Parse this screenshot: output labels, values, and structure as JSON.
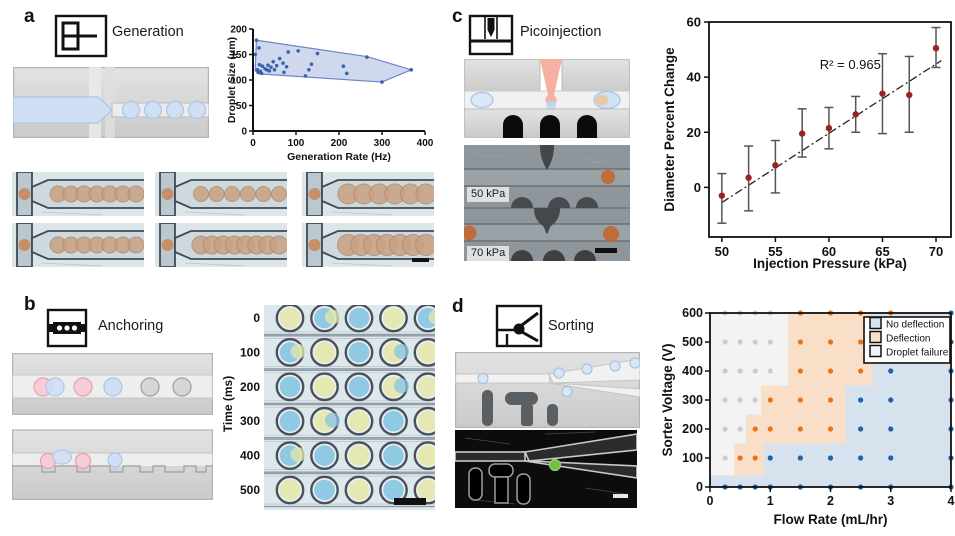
{
  "panels": {
    "a": {
      "letter": "a",
      "title": "Generation",
      "micro_images": [
        {
          "n": 7,
          "r": 8
        },
        {
          "n": 6,
          "r": 7.5
        },
        {
          "n": 6,
          "r": 10
        },
        {
          "n": 7,
          "r": 8
        },
        {
          "n": 8,
          "r": 9
        },
        {
          "n": 7,
          "r": 10.5
        }
      ]
    },
    "b": {
      "letter": "b",
      "title": "Anchoring",
      "time_axis_label": "Time (ms)",
      "time_ticks": [
        "0",
        "100",
        "200",
        "300",
        "400",
        "500"
      ],
      "anchor_rows": [
        [
          "Y",
          "BY",
          "B",
          "Y",
          "BY"
        ],
        [
          "BY",
          "Y",
          "B",
          "YB",
          "Y"
        ],
        [
          "B",
          "Y",
          "B",
          "YB",
          "Y"
        ],
        [
          "B",
          "YB",
          "Y",
          "B",
          "Y"
        ],
        [
          "BY",
          "B",
          "Y",
          "B",
          "Y"
        ],
        [
          "Y",
          "B",
          "Y",
          "B",
          "Y"
        ]
      ],
      "droplet_colors": {
        "Y": "#e4e7ab",
        "B": "#85c4e2"
      }
    },
    "c": {
      "letter": "c",
      "title": "Picoinjection",
      "image_labels": [
        "50 kPa",
        "70 kPa"
      ]
    },
    "d": {
      "letter": "d",
      "title": "Sorting"
    }
  },
  "chart_data": [
    {
      "id": "generation-operating-space",
      "type": "scatter",
      "title": "",
      "xlabel": "Generation Rate (Hz)",
      "ylabel": "Droplet Size (μm)",
      "xlim": [
        0,
        400
      ],
      "ylim": [
        0,
        200
      ],
      "xticks": [
        0,
        100,
        200,
        300,
        400
      ],
      "yticks": [
        0,
        50,
        100,
        150,
        200
      ],
      "point_color": "#3a63ad",
      "hull_fill": "#c9d3eb",
      "hull_stroke": "#5b74c4",
      "hull": [
        [
          5,
          118
        ],
        [
          8,
          178
        ],
        [
          265,
          146
        ],
        [
          368,
          120
        ],
        [
          300,
          96
        ],
        [
          14,
          112
        ]
      ],
      "points": [
        [
          5,
          150
        ],
        [
          8,
          178
        ],
        [
          10,
          120
        ],
        [
          12,
          115
        ],
        [
          14,
          163
        ],
        [
          15,
          130
        ],
        [
          17,
          117
        ],
        [
          20,
          113
        ],
        [
          22,
          127
        ],
        [
          28,
          122
        ],
        [
          32,
          120
        ],
        [
          35,
          129
        ],
        [
          38,
          118
        ],
        [
          42,
          125
        ],
        [
          47,
          136
        ],
        [
          50,
          120
        ],
        [
          55,
          128
        ],
        [
          62,
          142
        ],
        [
          70,
          133
        ],
        [
          72,
          115
        ],
        [
          78,
          126
        ],
        [
          82,
          155
        ],
        [
          105,
          157
        ],
        [
          122,
          108
        ],
        [
          130,
          120
        ],
        [
          136,
          131
        ],
        [
          150,
          152
        ],
        [
          210,
          127
        ],
        [
          218,
          113
        ],
        [
          265,
          145
        ],
        [
          300,
          96
        ],
        [
          368,
          120
        ]
      ]
    },
    {
      "id": "picoinjection-calibration",
      "type": "scatter",
      "title": "",
      "xlabel": "Injection Pressure (kPa)",
      "ylabel": "Diameter Percent Change",
      "xlim": [
        48.8,
        71.4
      ],
      "ylim": [
        -18,
        60
      ],
      "xticks": [
        50,
        55,
        60,
        65,
        70
      ],
      "yticks": [
        0,
        20,
        40,
        60
      ],
      "annotation": {
        "text": "R² = 0.965",
        "x": 62,
        "y": 43
      },
      "point_color": "#9c2222",
      "errorbar_color": "#555555",
      "points": [
        {
          "x": 50,
          "y": -3,
          "lo": -13,
          "hi": 5
        },
        {
          "x": 52.5,
          "y": 3.5,
          "lo": -8.5,
          "hi": 15
        },
        {
          "x": 55,
          "y": 8,
          "lo": -2,
          "hi": 17
        },
        {
          "x": 57.5,
          "y": 19.5,
          "lo": 11,
          "hi": 28.5
        },
        {
          "x": 60,
          "y": 21.5,
          "lo": 14,
          "hi": 29
        },
        {
          "x": 62.5,
          "y": 26.5,
          "lo": 20,
          "hi": 33
        },
        {
          "x": 65,
          "y": 34,
          "lo": 19.5,
          "hi": 48.5
        },
        {
          "x": 67.5,
          "y": 33.5,
          "lo": 20,
          "hi": 47.5
        },
        {
          "x": 70,
          "y": 50.5,
          "lo": 43.5,
          "hi": 58
        }
      ],
      "trendline": {
        "x1": 50,
        "y1": -5.5,
        "x2": 70.5,
        "y2": 46,
        "style": "dashdot"
      }
    },
    {
      "id": "sorting-phase-diagram",
      "type": "scatter",
      "title": "",
      "xlabel": "Flow Rate (mL/hr)",
      "ylabel": "Sorter Voltage (V)",
      "xlim": [
        0,
        4
      ],
      "ylim": [
        0,
        600
      ],
      "xticks": [
        0,
        1,
        2,
        3,
        4
      ],
      "yticks": [
        0,
        100,
        200,
        300,
        400,
        500,
        600
      ],
      "legend": [
        {
          "label": "No deflection",
          "key": "B",
          "color": "#d6e3ef"
        },
        {
          "label": "Deflection",
          "key": "O",
          "color": "#fadfc8"
        },
        {
          "label": "Droplet failure",
          "key": "G",
          "color": "#f3f3f3"
        }
      ],
      "point_colors": {
        "B": "#1f63a8",
        "O": "#e8731a",
        "G": "#cccccc"
      },
      "region_colors": {
        "B": "#d6e3ef",
        "O": "#fadfc8",
        "G": "#f3f3f3"
      },
      "blue_base_voltage": 40,
      "gray_steps": [
        [
          0.4,
          40,
          150
        ],
        [
          0.6,
          150,
          250
        ],
        [
          0.85,
          250,
          350
        ],
        [
          1.3,
          350,
          600
        ]
      ],
      "orange_steps": [
        [
          0.9,
          40,
          150
        ],
        [
          2.25,
          150,
          350
        ],
        [
          2.7,
          350,
          600
        ]
      ],
      "x_values": [
        0.25,
        0.5,
        0.75,
        1,
        1.5,
        2,
        2.5,
        3,
        4
      ],
      "rows": [
        {
          "voltage": 0,
          "results": [
            "B",
            "B",
            "B",
            "B",
            "B",
            "B",
            "B",
            "B",
            "B"
          ]
        },
        {
          "voltage": 100,
          "results": [
            "G",
            "O",
            "O",
            "B",
            "B",
            "B",
            "B",
            "B",
            "B"
          ]
        },
        {
          "voltage": 200,
          "results": [
            "G",
            "G",
            "O",
            "O",
            "O",
            "O",
            "B",
            "B",
            "B"
          ]
        },
        {
          "voltage": 300,
          "results": [
            "G",
            "G",
            "G",
            "O",
            "O",
            "O",
            "B",
            "B",
            "B"
          ]
        },
        {
          "voltage": 400,
          "results": [
            "G",
            "G",
            "G",
            "G",
            "O",
            "O",
            "O",
            "B",
            "B"
          ]
        },
        {
          "voltage": 500,
          "results": [
            "G",
            "G",
            "G",
            "G",
            "O",
            "O",
            "O",
            null,
            "B"
          ]
        },
        {
          "voltage": 600,
          "results": [
            "G",
            "G",
            "G",
            "G",
            "O",
            "O",
            "O",
            "O",
            "B"
          ]
        }
      ]
    }
  ]
}
